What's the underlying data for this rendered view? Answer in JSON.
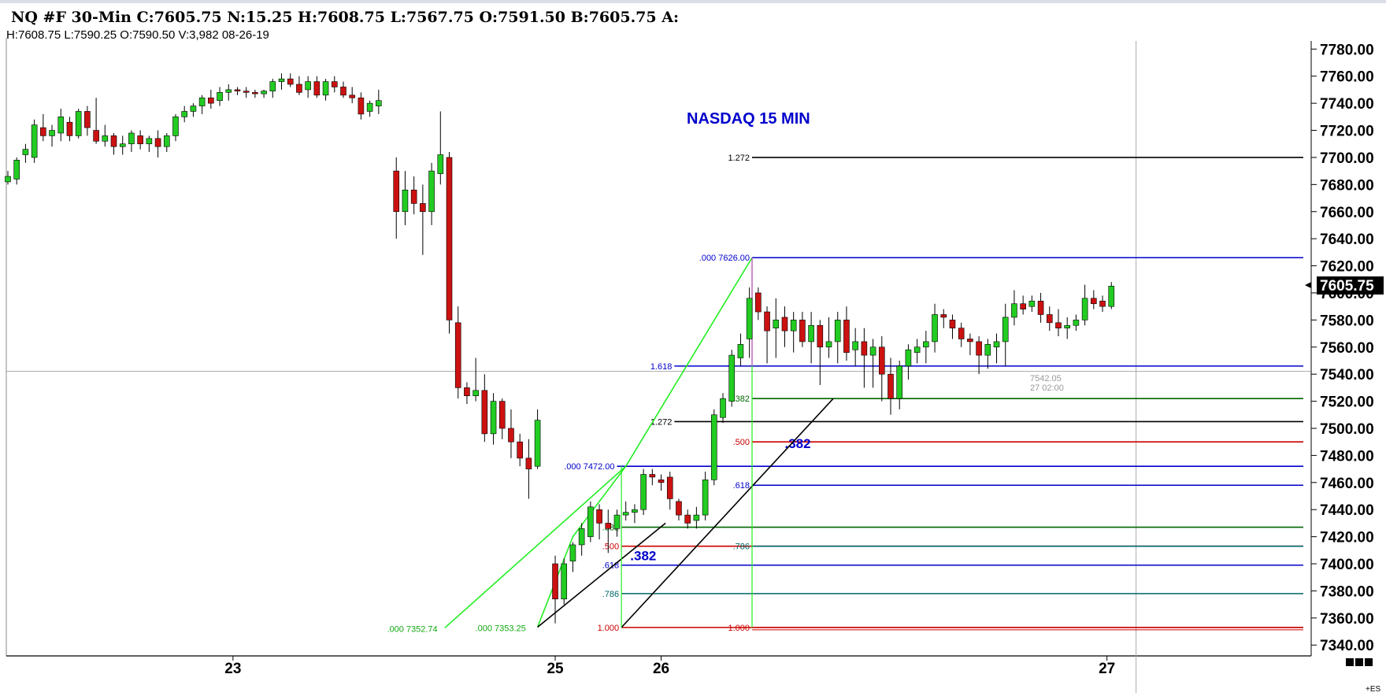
{
  "header": {
    "title": "NQ #F 30-Min C:7605.75 N:15.25 H:7608.75 L:7567.75 O:7591.50 B:7605.75 A:",
    "info": "H:7608.75 L:7590.25 O:7590.50 V:3,982 08-26-19"
  },
  "annotation_title": "NASDAQ  15 MIN",
  "cursor_readout": {
    "price": "7542.05",
    "time": "27 02:00"
  },
  "symbol_tag": "+ES",
  "colors": {
    "up": "#22cc22",
    "down": "#cc1111",
    "fib_blue": "#0000cc",
    "fib_black": "#000000",
    "fib_green": "#006600",
    "fib_red": "#cc0000",
    "fib_teal": "#006666",
    "swing_green": "#22ee22"
  },
  "chart_data": {
    "type": "candlestick",
    "ylim": [
      7332,
      7786
    ],
    "y_ticks": [
      "7780.00",
      "7760.00",
      "7740.00",
      "7720.00",
      "7700.00",
      "7680.00",
      "7660.00",
      "7640.00",
      "7620.00",
      "7600.00",
      "7580.00",
      "7560.00",
      "7540.00",
      "7520.00",
      "7500.00",
      "7480.00",
      "7460.00",
      "7440.00",
      "7420.00",
      "7400.00",
      "7380.00",
      "7360.00",
      "7340.00"
    ],
    "y_tick_values": [
      7780,
      7760,
      7740,
      7720,
      7700,
      7680,
      7660,
      7640,
      7620,
      7600,
      7580,
      7560,
      7540,
      7520,
      7500,
      7480,
      7460,
      7440,
      7420,
      7400,
      7380,
      7360,
      7340
    ],
    "x_labels": [
      {
        "label": "23",
        "bar": 25.5
      },
      {
        "label": "25",
        "bar": 62
      },
      {
        "label": "26",
        "bar": 74
      },
      {
        "label": "27",
        "bar": 124.5
      }
    ],
    "last_price": "7605.75",
    "last_price_value": 7605.75,
    "crosshair": {
      "price": 7542.05,
      "bar": 127.8
    },
    "candles": [
      [
        7682,
        7690,
        7680,
        7686
      ],
      [
        7684,
        7700,
        7680,
        7698
      ],
      [
        7702,
        7710,
        7696,
        7706
      ],
      [
        7700,
        7728,
        7696,
        7724
      ],
      [
        7722,
        7732,
        7712,
        7716
      ],
      [
        7716,
        7724,
        7708,
        7720
      ],
      [
        7718,
        7736,
        7712,
        7730
      ],
      [
        7726,
        7730,
        7712,
        7716
      ],
      [
        7716,
        7736,
        7714,
        7734
      ],
      [
        7734,
        7738,
        7716,
        7722
      ],
      [
        7720,
        7744,
        7710,
        7712
      ],
      [
        7712,
        7724,
        7708,
        7716
      ],
      [
        7716,
        7718,
        7702,
        7708
      ],
      [
        7708,
        7716,
        7702,
        7710
      ],
      [
        7710,
        7720,
        7704,
        7718
      ],
      [
        7716,
        7720,
        7706,
        7710
      ],
      [
        7710,
        7716,
        7704,
        7714
      ],
      [
        7714,
        7720,
        7700,
        7708
      ],
      [
        7708,
        7718,
        7704,
        7716
      ],
      [
        7716,
        7732,
        7712,
        7730
      ],
      [
        7730,
        7738,
        7726,
        7734
      ],
      [
        7734,
        7740,
        7730,
        7738
      ],
      [
        7738,
        7746,
        7732,
        7744
      ],
      [
        7744,
        7750,
        7736,
        7740
      ],
      [
        7742,
        7752,
        7738,
        7748
      ],
      [
        7748,
        7754,
        7742,
        7750
      ],
      [
        7750,
        7752,
        7746,
        7749
      ],
      [
        7749,
        7752,
        7744,
        7748
      ],
      [
        7748,
        7750,
        7744,
        7747
      ],
      [
        7747,
        7750,
        7744,
        7749
      ],
      [
        7749,
        7758,
        7744,
        7756
      ],
      [
        7756,
        7762,
        7750,
        7758
      ],
      [
        7758,
        7762,
        7752,
        7754
      ],
      [
        7754,
        7760,
        7746,
        7748
      ],
      [
        7750,
        7760,
        7744,
        7756
      ],
      [
        7756,
        7760,
        7744,
        7746
      ],
      [
        7746,
        7758,
        7742,
        7756
      ],
      [
        7756,
        7760,
        7748,
        7752
      ],
      [
        7752,
        7756,
        7744,
        7746
      ],
      [
        7746,
        7752,
        7740,
        7744
      ],
      [
        7744,
        7748,
        7728,
        7732
      ],
      [
        7734,
        7742,
        7730,
        7740
      ],
      [
        7738,
        7750,
        7732,
        7742
      ],
      [
        null,
        null,
        null,
        null
      ],
      [
        7690,
        7700,
        7640,
        7660
      ],
      [
        7660,
        7690,
        7650,
        7676
      ],
      [
        7676,
        7686,
        7658,
        7666
      ],
      [
        7666,
        7680,
        7628,
        7660
      ],
      [
        7660,
        7696,
        7650,
        7690
      ],
      [
        7688,
        7734,
        7680,
        7702
      ],
      [
        7700,
        7704,
        7570,
        7580
      ],
      [
        7578,
        7590,
        7522,
        7530
      ],
      [
        7530,
        7534,
        7518,
        7524
      ],
      [
        7524,
        7552,
        7520,
        7528
      ],
      [
        7528,
        7540,
        7490,
        7496
      ],
      [
        7496,
        7526,
        7488,
        7520
      ],
      [
        7520,
        7522,
        7492,
        7500
      ],
      [
        7500,
        7514,
        7478,
        7490
      ],
      [
        7490,
        7496,
        7472,
        7478
      ],
      [
        7478,
        7492,
        7448,
        7470
      ],
      [
        7472,
        7514,
        7470,
        7506
      ],
      [
        null,
        null,
        null,
        null
      ],
      [
        7400,
        7406,
        7356,
        7374
      ],
      [
        7374,
        7404,
        7370,
        7400
      ],
      [
        7402,
        7416,
        7394,
        7414
      ],
      [
        7414,
        7430,
        7406,
        7426
      ],
      [
        7420,
        7446,
        7416,
        7442
      ],
      [
        7440,
        7444,
        7418,
        7430
      ],
      [
        7430,
        7440,
        7408,
        7426
      ],
      [
        7426,
        7440,
        7420,
        7436
      ],
      [
        7436,
        7446,
        7432,
        7438
      ],
      [
        7438,
        7444,
        7430,
        7440
      ],
      [
        7440,
        7470,
        7436,
        7466
      ],
      [
        7466,
        7470,
        7458,
        7464
      ],
      [
        7462,
        7466,
        7454,
        7460
      ],
      [
        7464,
        7468,
        7440,
        7448
      ],
      [
        7446,
        7448,
        7432,
        7436
      ],
      [
        7436,
        7440,
        7426,
        7430
      ],
      [
        7432,
        7442,
        7426,
        7436
      ],
      [
        7436,
        7468,
        7432,
        7462
      ],
      [
        7462,
        7514,
        7458,
        7510
      ],
      [
        7508,
        7526,
        7504,
        7522
      ],
      [
        7520,
        7558,
        7516,
        7554
      ],
      [
        7552,
        7570,
        7546,
        7562
      ],
      [
        7566,
        7604,
        7552,
        7596
      ],
      [
        7600,
        7604,
        7580,
        7586
      ],
      [
        7586,
        7590,
        7548,
        7572
      ],
      [
        7574,
        7596,
        7552,
        7580
      ],
      [
        7582,
        7590,
        7560,
        7572
      ],
      [
        7572,
        7586,
        7556,
        7580
      ],
      [
        7580,
        7586,
        7560,
        7564
      ],
      [
        7564,
        7586,
        7548,
        7576
      ],
      [
        7576,
        7580,
        7532,
        7560
      ],
      [
        7560,
        7582,
        7552,
        7564
      ],
      [
        7564,
        7586,
        7548,
        7580
      ],
      [
        7580,
        7590,
        7550,
        7556
      ],
      [
        7558,
        7574,
        7546,
        7564
      ],
      [
        7564,
        7574,
        7530,
        7554
      ],
      [
        7554,
        7566,
        7530,
        7560
      ],
      [
        7560,
        7568,
        7520,
        7540
      ],
      [
        7540,
        7552,
        7510,
        7522
      ],
      [
        7522,
        7550,
        7514,
        7546
      ],
      [
        7546,
        7562,
        7536,
        7558
      ],
      [
        7556,
        7566,
        7548,
        7560
      ],
      [
        7560,
        7572,
        7548,
        7564
      ],
      [
        7564,
        7592,
        7556,
        7584
      ],
      [
        7584,
        7588,
        7574,
        7582
      ],
      [
        7580,
        7584,
        7566,
        7574
      ],
      [
        7574,
        7578,
        7560,
        7566
      ],
      [
        7566,
        7570,
        7554,
        7564
      ],
      [
        7564,
        7568,
        7540,
        7554
      ],
      [
        7554,
        7566,
        7544,
        7562
      ],
      [
        7560,
        7570,
        7548,
        7564
      ],
      [
        7564,
        7592,
        7546,
        7582
      ],
      [
        7582,
        7602,
        7576,
        7592
      ],
      [
        7592,
        7598,
        7584,
        7588
      ],
      [
        7590,
        7598,
        7586,
        7594
      ],
      [
        7594,
        7600,
        7578,
        7584
      ],
      [
        7584,
        7590,
        7572,
        7578
      ],
      [
        7578,
        7588,
        7568,
        7574
      ],
      [
        7574,
        7582,
        7566,
        7576
      ],
      [
        7576,
        7584,
        7572,
        7580
      ],
      [
        7580,
        7606,
        7576,
        7596
      ],
      [
        7596,
        7602,
        7588,
        7592
      ],
      [
        7594,
        7598,
        7586,
        7590
      ],
      [
        7590,
        7608,
        7588,
        7605
      ]
    ],
    "fib_levels": [
      {
        "label": "1.272",
        "value": 7700,
        "x1bar": 84.3,
        "color": "#000000",
        "label_color": "#000000"
      },
      {
        "label": ".000 7626.00",
        "value": 7626,
        "x1bar": 84.3,
        "color": "#0000cc",
        "label_color": "#0000cc"
      },
      {
        "label": "1.618",
        "value": 7546,
        "x1bar": 75.5,
        "color": "#0000cc",
        "label_color": "#0000cc"
      },
      {
        "label": ".382",
        "value": 7522,
        "x1bar": 84.3,
        "color": "#006600",
        "label_color": "#006600"
      },
      {
        "label": "1.272",
        "value": 7505,
        "x1bar": 75.5,
        "color": "#000000",
        "label_color": "#000000"
      },
      {
        "label": ".500",
        "value": 7490,
        "x1bar": 84.3,
        "color": "#cc0000",
        "label_color": "#cc0000"
      },
      {
        "label": ".000 7472.00",
        "value": 7472,
        "x1bar": 69,
        "color": "#0000cc",
        "label_color": "#0000cc"
      },
      {
        "label": ".618",
        "value": 7458,
        "x1bar": 84.3,
        "color": "#0000cc",
        "label_color": "#0000cc"
      },
      {
        "label": ".382",
        "value": 7427,
        "x1bar": 69.5,
        "color": "#006600",
        "label_color": "#006600"
      },
      {
        "label": ".500",
        "value": 7413,
        "x1bar": 69.5,
        "color": "#cc0000",
        "label_color": "#cc0000"
      },
      {
        "label": ".786",
        "value": 7413,
        "x1bar": 84.3,
        "color": "#006666",
        "label_color": "#006666"
      },
      {
        "label": ".618",
        "value": 7399,
        "x1bar": 69.5,
        "color": "#0000cc",
        "label_color": "#0000cc"
      },
      {
        "label": ".786",
        "value": 7378,
        "x1bar": 69.5,
        "color": "#006666",
        "label_color": "#006666"
      },
      {
        "label": "1.000",
        "value": 7353,
        "x1bar": 69.5,
        "color": "#cc0000",
        "label_color": "#cc0000"
      },
      {
        "label": "1.000",
        "value": 7353,
        "x1bar": 84.3,
        "color": "#cc0000",
        "label_color": "#cc0000"
      }
    ],
    "swing_labels": [
      {
        "label": ".000 7352.74",
        "bar": 48.5,
        "value": 7352.74
      },
      {
        "label": ".000 7353.25",
        "bar": 58.5,
        "value": 7353.25
      }
    ],
    "big_annotations": [
      {
        "label": ".382",
        "bar": 88,
        "value": 7489
      },
      {
        "label": ".382",
        "bar": 70.5,
        "value": 7406
      }
    ],
    "trend_lines": [
      {
        "color": "#22ee22",
        "points": [
          [
            49.5,
            7352.74
          ],
          [
            70,
            7472
          ]
        ]
      },
      {
        "color": "#22ee22",
        "points": [
          [
            70,
            7472
          ],
          [
            84.3,
            7626
          ]
        ]
      },
      {
        "color": "#22ee22",
        "points": [
          [
            60,
            7353.25
          ],
          [
            64,
            7420
          ],
          [
            70,
            7472
          ]
        ]
      },
      {
        "color": "#000000",
        "points": [
          [
            60,
            7353.25
          ],
          [
            74.5,
            7430
          ]
        ]
      },
      {
        "color": "#000000",
        "points": [
          [
            69.5,
            7353
          ],
          [
            93.5,
            7522
          ]
        ]
      }
    ],
    "vlines": [
      {
        "bar": 69.5,
        "from": 7472,
        "to": 7353,
        "color": "#22ee22"
      },
      {
        "bar": 84.3,
        "from": 7626,
        "to": 7353,
        "color": "#22ee22"
      },
      {
        "bar": 84.3,
        "from": 7626,
        "to": 7546,
        "color": "#cc44cc"
      }
    ]
  }
}
